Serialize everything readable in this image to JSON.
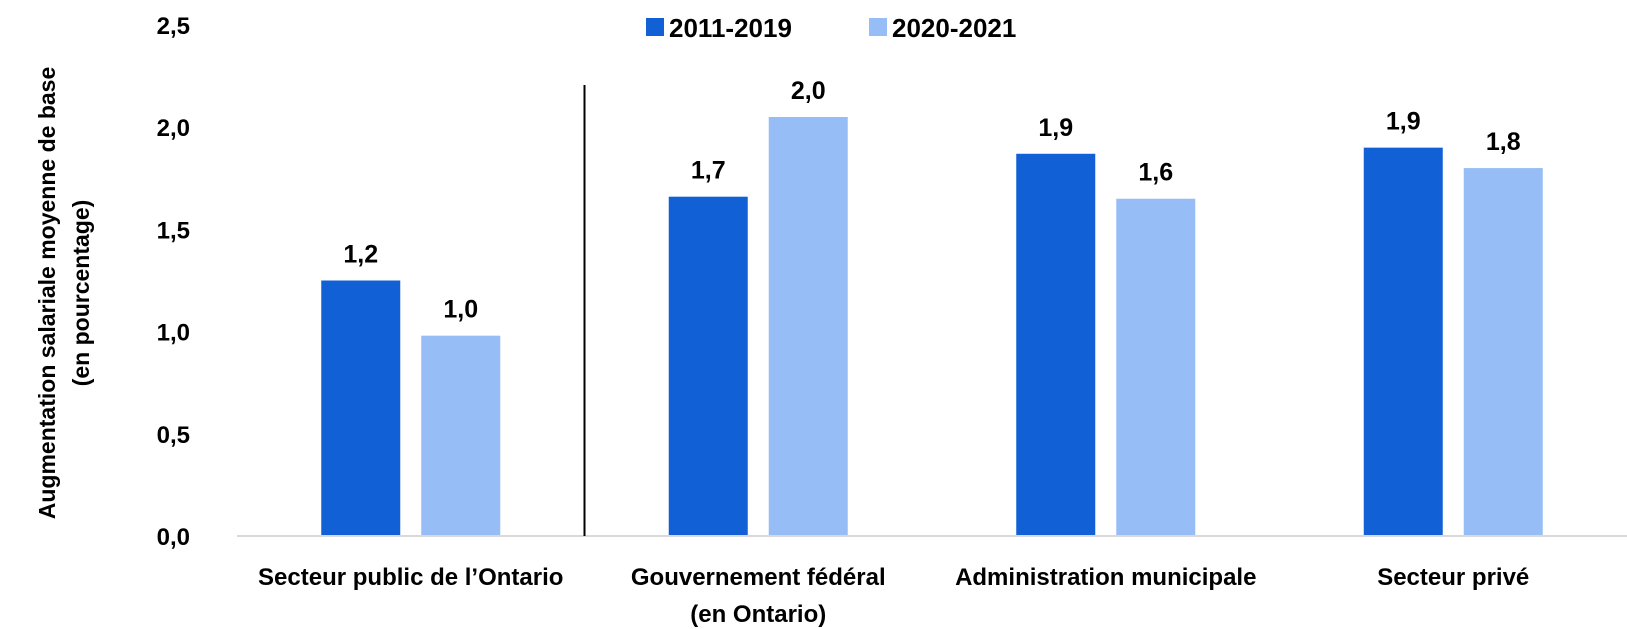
{
  "chart_data": {
    "type": "bar",
    "ylabel_lines": [
      "Augmentation salariale moyenne de base",
      "(en pourcentage)"
    ],
    "ylim": [
      0,
      2.5
    ],
    "yticks": [
      0,
      0.5,
      1,
      1.5,
      2,
      2.5
    ],
    "ytick_labels": [
      "0,0",
      "0,5",
      "1,0",
      "1,5",
      "2,0",
      "2,5"
    ],
    "categories": [
      [
        "Secteur public de l’Ontario"
      ],
      [
        "Gouvernement fédéral",
        "(en Ontario)"
      ],
      [
        "Administration municipale"
      ],
      [
        "Secteur privé"
      ]
    ],
    "series": [
      {
        "name": "2011-2019",
        "color": "#1160D6",
        "values": [
          1.25,
          1.66,
          1.87,
          1.9
        ],
        "labels": [
          "1,2",
          "1,7",
          "1,9",
          "1,9"
        ]
      },
      {
        "name": "2020-2021",
        "color": "#97BDF6",
        "values": [
          0.98,
          2.05,
          1.65,
          1.8
        ],
        "labels": [
          "1,0",
          "2,0",
          "1,6",
          "1,8"
        ]
      }
    ],
    "legend_position": "top-center",
    "grid": false,
    "separator_after_category": 0
  }
}
